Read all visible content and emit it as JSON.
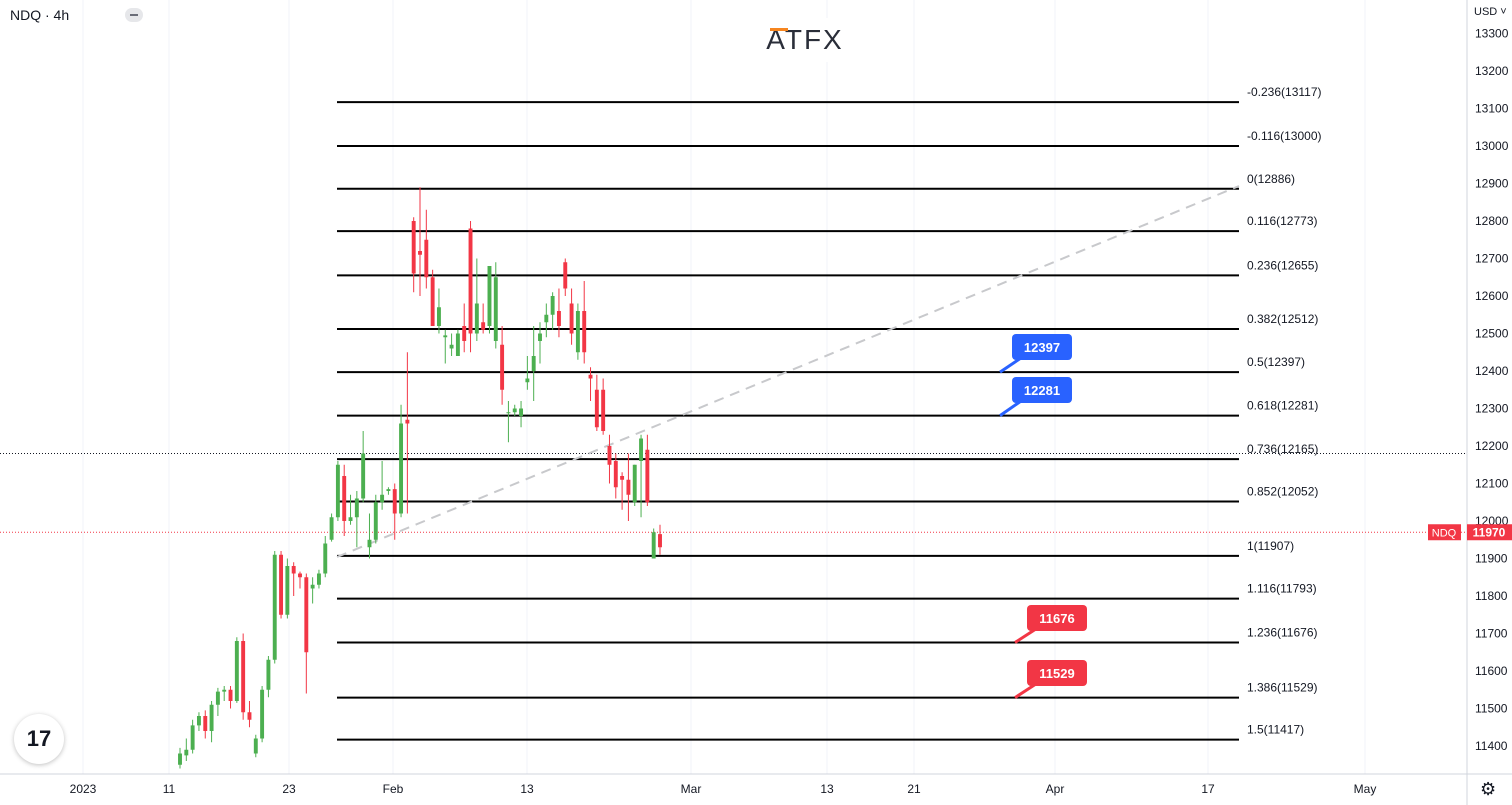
{
  "header": {
    "symbol": "NDQ · 4h",
    "brand": "ATFX",
    "currency": "USD"
  },
  "price_tag": {
    "label": "NDQ",
    "value": "11970"
  },
  "fib_labels": [
    "-0.236(13117)",
    "-0.116(13000)",
    "0(12886)",
    "0.116(12773)",
    "0.236(12655)",
    "0.382(12512)",
    "0.5(12397)",
    "0.618(12281)",
    "0.736(12165)",
    "0.852(12052)",
    "1(11907)",
    "1.116(11793)",
    "1.236(11676)",
    "1.386(11529)",
    "1.5(11417)"
  ],
  "callouts": [
    {
      "text": "12397",
      "color": "#2962ff"
    },
    {
      "text": "12281",
      "color": "#2962ff"
    },
    {
      "text": "11676",
      "color": "#f23645"
    },
    {
      "text": "11529",
      "color": "#f23645"
    }
  ],
  "colors": {
    "up": "#4caf50",
    "down": "#f23645",
    "accent": "#f6851f"
  },
  "icons": {
    "tv_logo": "tradingview-logo-icon",
    "settings": "gear-icon",
    "collapse": "collapse-icon"
  },
  "tv_glyph": "17",
  "settings_glyph": "⚙",
  "chart_data": {
    "type": "candlestick",
    "y_ticks": [
      11400,
      11500,
      11600,
      11700,
      11800,
      11900,
      12000,
      12100,
      12200,
      12300,
      12400,
      12500,
      12600,
      12700,
      12800,
      12900,
      13000,
      13100,
      13200,
      13300
    ],
    "ylim": [
      11365,
      13335
    ],
    "x_ticks": [
      "2023",
      "11",
      "23",
      "Feb",
      "13",
      "Mar",
      "13",
      "21",
      "Apr",
      "17",
      "May"
    ],
    "fib_levels": [
      {
        "ratio": -0.236,
        "price": 13117
      },
      {
        "ratio": -0.116,
        "price": 13000
      },
      {
        "ratio": 0,
        "price": 12886
      },
      {
        "ratio": 0.116,
        "price": 12773
      },
      {
        "ratio": 0.236,
        "price": 12655
      },
      {
        "ratio": 0.382,
        "price": 12512
      },
      {
        "ratio": 0.5,
        "price": 12397
      },
      {
        "ratio": 0.618,
        "price": 12281
      },
      {
        "ratio": 0.736,
        "price": 12165
      },
      {
        "ratio": 0.852,
        "price": 12052
      },
      {
        "ratio": 1,
        "price": 11907
      },
      {
        "ratio": 1.116,
        "price": 11793
      },
      {
        "ratio": 1.236,
        "price": 11676
      },
      {
        "ratio": 1.386,
        "price": 11529
      },
      {
        "ratio": 1.5,
        "price": 11417
      }
    ],
    "last_price": 11970,
    "ref_price_dotted": 12180,
    "candles_ohlc": [
      [
        11350,
        11395,
        11340,
        11380
      ],
      [
        11375,
        11420,
        11360,
        11390
      ],
      [
        11390,
        11470,
        11380,
        11455
      ],
      [
        11455,
        11490,
        11440,
        11480
      ],
      [
        11480,
        11495,
        11420,
        11440
      ],
      [
        11440,
        11520,
        11410,
        11510
      ],
      [
        11510,
        11555,
        11480,
        11545
      ],
      [
        11545,
        11560,
        11520,
        11550
      ],
      [
        11550,
        11560,
        11500,
        11520
      ],
      [
        11520,
        11690,
        11515,
        11680
      ],
      [
        11680,
        11700,
        11470,
        11490
      ],
      [
        11490,
        11520,
        11450,
        11470
      ],
      [
        11380,
        11430,
        11370,
        11420
      ],
      [
        11420,
        11560,
        11410,
        11550
      ],
      [
        11550,
        11640,
        11530,
        11630
      ],
      [
        11630,
        11920,
        11620,
        11910
      ],
      [
        11910,
        11920,
        11740,
        11750
      ],
      [
        11750,
        11900,
        11740,
        11880
      ],
      [
        11880,
        11890,
        11800,
        11860
      ],
      [
        11860,
        11865,
        11820,
        11850
      ],
      [
        11850,
        11860,
        11540,
        11650
      ],
      [
        11820,
        11850,
        11780,
        11830
      ],
      [
        11830,
        11870,
        11820,
        11860
      ],
      [
        11860,
        11960,
        11850,
        11940
      ],
      [
        11950,
        12020,
        11945,
        12010
      ],
      [
        12010,
        12160,
        12000,
        12150
      ],
      [
        12120,
        12150,
        11960,
        12000
      ],
      [
        12000,
        12070,
        11990,
        12010
      ],
      [
        12010,
        12080,
        11930,
        12060
      ],
      [
        12060,
        12240,
        12050,
        12180
      ],
      [
        11930,
        12020,
        11900,
        11950
      ],
      [
        11950,
        12070,
        11940,
        12050
      ],
      [
        12050,
        12160,
        12030,
        12070
      ],
      [
        12080,
        12090,
        12070,
        12085
      ],
      [
        12085,
        12100,
        11950,
        12020
      ],
      [
        12020,
        12310,
        12010,
        12260
      ],
      [
        12270,
        12450,
        12020,
        12260
      ],
      [
        12800,
        12810,
        12610,
        12660
      ],
      [
        12720,
        12890,
        12600,
        12710
      ],
      [
        12750,
        12830,
        12620,
        12650
      ],
      [
        12650,
        12670,
        12520,
        12520
      ],
      [
        12520,
        12620,
        12500,
        12570
      ],
      [
        12490,
        12510,
        12420,
        12495
      ],
      [
        12460,
        12500,
        12440,
        12470
      ],
      [
        12440,
        12510,
        12440,
        12500
      ],
      [
        12520,
        12580,
        12450,
        12480
      ],
      [
        12780,
        12800,
        12450,
        12500
      ],
      [
        12500,
        12700,
        12480,
        12580
      ],
      [
        12530,
        12580,
        12500,
        12510
      ],
      [
        12520,
        12680,
        12500,
        12680
      ],
      [
        12480,
        12690,
        12460,
        12650
      ],
      [
        12470,
        12520,
        12310,
        12350
      ],
      [
        12290,
        12320,
        12210,
        12290
      ],
      [
        12290,
        12310,
        12280,
        12300
      ],
      [
        12280,
        12320,
        12250,
        12300
      ],
      [
        12370,
        12440,
        12350,
        12380
      ],
      [
        12400,
        12520,
        12320,
        12440
      ],
      [
        12480,
        12530,
        12420,
        12500
      ],
      [
        12530,
        12580,
        12490,
        12550
      ],
      [
        12550,
        12610,
        12510,
        12600
      ],
      [
        12560,
        12620,
        12490,
        12520
      ],
      [
        12690,
        12700,
        12600,
        12620
      ],
      [
        12580,
        12620,
        12470,
        12500
      ],
      [
        12450,
        12580,
        12430,
        12560
      ],
      [
        12560,
        12640,
        12420,
        12450
      ],
      [
        12390,
        12410,
        12320,
        12380
      ],
      [
        12350,
        12390,
        12240,
        12250
      ],
      [
        12350,
        12380,
        12230,
        12240
      ],
      [
        12200,
        12230,
        12100,
        12150
      ],
      [
        12160,
        12180,
        12060,
        12090
      ],
      [
        12120,
        12130,
        12030,
        12110
      ],
      [
        12110,
        12180,
        12000,
        12070
      ],
      [
        12050,
        12150,
        12040,
        12150
      ],
      [
        12160,
        12230,
        12010,
        12220
      ],
      [
        12190,
        12230,
        12040,
        12050
      ],
      [
        11900,
        11980,
        11900,
        11970
      ],
      [
        11965,
        11990,
        11910,
        11930
      ]
    ]
  }
}
